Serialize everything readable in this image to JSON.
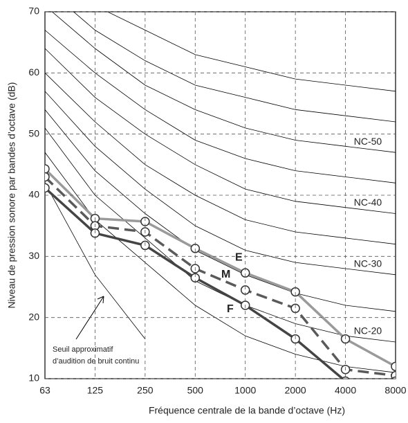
{
  "chart_data": {
    "type": "line",
    "xlabel": "Fréquence centrale de la bande d’octave (Hz)",
    "ylabel": "Niveau de pression sonore par bandes d’octave (dB)",
    "categories": [
      "63",
      "125",
      "250",
      "500",
      "1000",
      "2000",
      "4000",
      "8000"
    ],
    "ylim": [
      10,
      70
    ],
    "yticks": [
      10,
      20,
      30,
      40,
      50,
      60,
      70
    ],
    "grid": true,
    "series": [
      {
        "name": "E",
        "color": "#9a9a9a",
        "dash": false,
        "values": [
          44.3,
          36.2,
          35.7,
          31.3,
          27.3,
          24.2,
          16.5,
          12.0
        ]
      },
      {
        "name": "M",
        "color": "#5a5a5a",
        "dash": true,
        "values": [
          43.0,
          35.0,
          34.0,
          28.0,
          24.5,
          21.5,
          11.5,
          10.5
        ]
      },
      {
        "name": "F",
        "color": "#444444",
        "dash": false,
        "values": [
          41.2,
          33.8,
          31.8,
          26.5,
          22.0,
          16.5,
          9.6,
          9.6
        ]
      }
    ],
    "nc_color": "#000000",
    "nc_curves": [
      {
        "values": [
          47,
          36,
          29,
          22,
          17,
          14,
          12,
          11
        ]
      },
      {
        "label": "NC-20",
        "values": [
          51,
          40,
          33,
          26,
          22,
          19,
          17,
          16
        ]
      },
      {
        "values": [
          54,
          44,
          37,
          31,
          27,
          24,
          22,
          21
        ]
      },
      {
        "label": "NC-30",
        "values": [
          57,
          48,
          41,
          35,
          31,
          29,
          28,
          27
        ]
      },
      {
        "values": [
          60,
          52,
          45,
          40,
          36,
          34,
          33,
          32
        ]
      },
      {
        "label": "NC-40",
        "values": [
          64,
          56,
          50,
          45,
          41,
          39,
          38,
          37
        ]
      },
      {
        "values": [
          67,
          60,
          54,
          49,
          46,
          44,
          43,
          42
        ]
      },
      {
        "label": "NC-50",
        "values": [
          71,
          64,
          58,
          54,
          51,
          49,
          48,
          47
        ]
      },
      {
        "values": [
          74,
          67,
          62,
          58,
          56,
          54,
          53,
          52
        ]
      },
      {
        "values": [
          77,
          71,
          67,
          63,
          61,
          59,
          58,
          57
        ]
      }
    ],
    "threshold": {
      "values": [
        42,
        27,
        16.5,
        null,
        null,
        null,
        null,
        null
      ],
      "annotation": [
        "Seuil approximatif",
        "d’audition de bruit continu"
      ]
    }
  }
}
